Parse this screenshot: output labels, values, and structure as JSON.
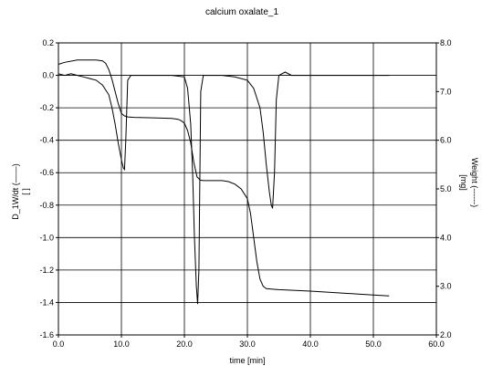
{
  "chart_data": {
    "type": "line",
    "title": "calcium oxalate_1",
    "xlabel": "time [min]",
    "ylabel_left": "D_1W/dt (——)",
    "ylabel_left_unit": "[ ]",
    "ylabel_right": "Weight (------)",
    "ylabel_right_unit": "[mg]",
    "xlim": [
      0,
      60
    ],
    "ylim_left": [
      -1.6,
      0.2
    ],
    "ylim_right": [
      2.0,
      8.0
    ],
    "grid": true,
    "x_ticks": [
      "0.0",
      "10.0",
      "20.0",
      "30.0",
      "40.0",
      "50.0",
      "60.0"
    ],
    "y_left_ticks": [
      "0.2",
      "0.0",
      "-0.2",
      "-0.4",
      "-0.6",
      "-0.8",
      "-1.0",
      "-1.2",
      "-1.4",
      "-1.6"
    ],
    "y_right_ticks": [
      "8.0",
      "7.0",
      "6.0",
      "5.0",
      "4.0",
      "3.0",
      "2.0"
    ],
    "series": [
      {
        "axis": "left",
        "x": [
          0,
          1,
          2,
          3,
          4,
          5,
          6,
          7,
          8,
          8.5,
          9,
          9.5,
          10,
          10.3,
          10.5,
          10.7,
          11,
          11.5,
          12,
          14,
          16,
          18,
          20,
          20.5,
          21,
          21.3,
          21.6,
          21.9,
          22.1,
          22.3,
          22.6,
          23,
          24,
          26,
          28,
          30,
          31,
          32,
          32.5,
          33,
          33.5,
          33.8,
          34,
          34.3,
          34.6,
          35,
          36,
          37,
          40,
          45,
          50,
          52.5
        ],
        "y": [
          0.01,
          0.0,
          0.01,
          0.0,
          -0.01,
          -0.02,
          -0.03,
          -0.06,
          -0.12,
          -0.2,
          -0.3,
          -0.42,
          -0.52,
          -0.57,
          -0.58,
          -0.4,
          -0.03,
          0.0,
          0.0,
          0.0,
          0.0,
          0.0,
          -0.01,
          -0.08,
          -0.3,
          -0.6,
          -1.0,
          -1.3,
          -1.41,
          -1.2,
          -0.1,
          0.0,
          0.0,
          0.0,
          -0.01,
          -0.03,
          -0.08,
          -0.2,
          -0.35,
          -0.55,
          -0.72,
          -0.8,
          -0.82,
          -0.6,
          -0.15,
          0.0,
          0.02,
          0.0,
          0.0,
          0.0,
          0.0,
          0.0
        ]
      },
      {
        "axis": "right",
        "x": [
          0,
          1,
          3,
          6,
          7,
          7.5,
          8,
          8.5,
          9,
          9.5,
          10,
          10.5,
          11,
          12,
          15,
          18,
          19,
          19.5,
          20,
          20.5,
          21,
          21.5,
          22,
          22.5,
          23,
          26,
          27,
          28,
          29,
          30,
          30.5,
          31,
          31.5,
          32,
          32.5,
          33,
          34,
          35,
          40,
          45,
          50,
          52.5
        ],
        "y": [
          7.56,
          7.6,
          7.65,
          7.65,
          7.63,
          7.58,
          7.45,
          7.25,
          7.0,
          6.75,
          6.55,
          6.5,
          6.48,
          6.47,
          6.46,
          6.45,
          6.43,
          6.4,
          6.35,
          6.2,
          5.95,
          5.55,
          5.25,
          5.18,
          5.17,
          5.17,
          5.15,
          5.1,
          5.0,
          4.8,
          4.5,
          4.0,
          3.5,
          3.15,
          3.0,
          2.95,
          2.94,
          2.93,
          2.9,
          2.86,
          2.82,
          2.8
        ]
      }
    ]
  }
}
